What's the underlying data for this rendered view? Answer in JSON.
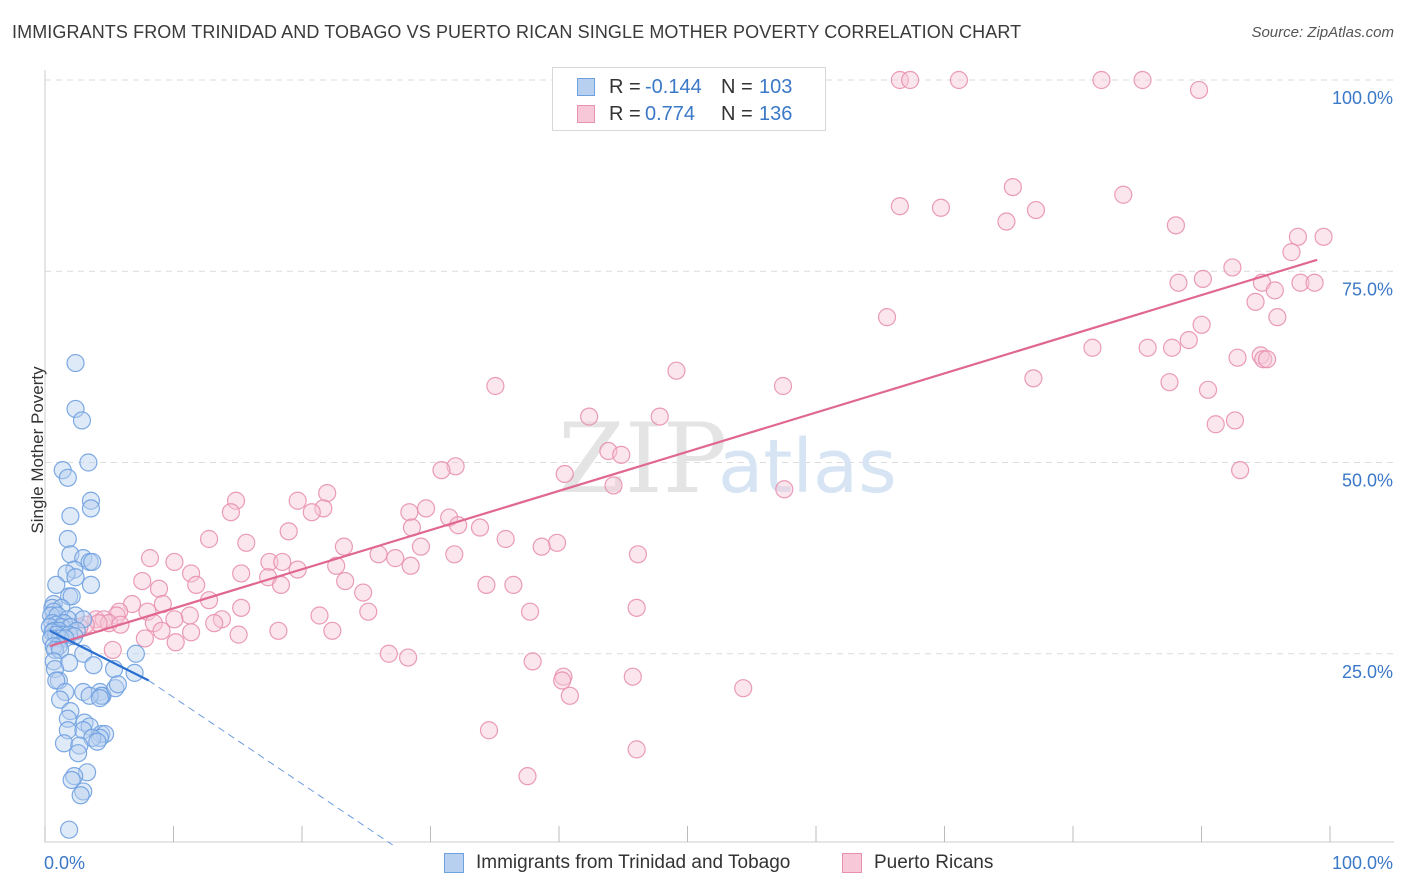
{
  "title": "IMMIGRANTS FROM TRINIDAD AND TOBAGO VS PUERTO RICAN SINGLE MOTHER POVERTY CORRELATION CHART",
  "source": "Source: ZipAtlas.com",
  "watermark": {
    "zip": "ZIP",
    "atlas": "atlas"
  },
  "colors": {
    "blue": "#6fa0e0",
    "blue_fill": "#b8d0f0",
    "blue_line": "#2a6fd0",
    "pink": "#e890b0",
    "pink_fill": "#f6c8d8",
    "pink_line": "#e06890",
    "accent_text": "#3b78c8",
    "grid": "#dcdcdc"
  },
  "legend_top": {
    "rows": [
      {
        "r_label": "R =",
        "r_value": "-0.144",
        "n_label": "N =",
        "n_value": "103",
        "series": "blue"
      },
      {
        "r_label": "R =",
        "r_value": "0.774",
        "n_label": "N =",
        "n_value": "136",
        "series": "pink"
      }
    ]
  },
  "legend_bottom": [
    {
      "label": "Immigrants from Trinidad and Tobago",
      "series": "blue"
    },
    {
      "label": "Puerto Ricans",
      "series": "pink"
    }
  ],
  "chart_data": {
    "type": "scatter",
    "title": "IMMIGRANTS FROM TRINIDAD AND TOBAGO VS PUERTO RICAN SINGLE MOTHER POVERTY CORRELATION CHART",
    "xlabel": "",
    "ylabel": "Single Mother Poverty",
    "xlim": [
      0,
      100
    ],
    "ylim": [
      0,
      103
    ],
    "x_tick_labels": {
      "0": "0.0%",
      "100": "100.0%"
    },
    "y_tick_labels": [
      {
        "value": 25,
        "label": "25.0%"
      },
      {
        "value": 50,
        "label": "50.0%"
      },
      {
        "value": 75,
        "label": "75.0%"
      },
      {
        "value": 100,
        "label": "100.0%"
      }
    ],
    "grid": true,
    "series": [
      {
        "name": "Immigrants from Trinidad and Tobago",
        "color": "blue",
        "trend": {
          "x0": 0.3,
          "y0": 28.0,
          "x1": 8.0,
          "y1": 21.5,
          "dash_to_x": 27.0,
          "dash_to_y": 0.0
        },
        "points": [
          [
            2.3,
            63
          ],
          [
            2.3,
            57
          ],
          [
            2.8,
            55.5
          ],
          [
            3.3,
            50
          ],
          [
            1.3,
            49
          ],
          [
            1.7,
            48
          ],
          [
            3.5,
            45
          ],
          [
            3.5,
            44
          ],
          [
            1.9,
            43
          ],
          [
            1.7,
            40
          ],
          [
            1.9,
            38
          ],
          [
            2.9,
            37.5
          ],
          [
            3.4,
            37
          ],
          [
            3.6,
            37
          ],
          [
            2.2,
            36
          ],
          [
            1.6,
            35.5
          ],
          [
            2.3,
            35
          ],
          [
            0.8,
            34
          ],
          [
            3.5,
            34
          ],
          [
            1.8,
            32.5
          ],
          [
            2.0,
            32.5
          ],
          [
            0.6,
            31.5
          ],
          [
            0.5,
            31
          ],
          [
            1.2,
            31
          ],
          [
            0.6,
            30.5
          ],
          [
            2.3,
            30
          ],
          [
            0.4,
            30
          ],
          [
            0.9,
            30
          ],
          [
            2.9,
            29.5
          ],
          [
            1.7,
            29.5
          ],
          [
            0.5,
            29
          ],
          [
            1.4,
            29
          ],
          [
            0.8,
            28.8
          ],
          [
            1.2,
            28.5
          ],
          [
            0.3,
            28.5
          ],
          [
            1.9,
            28.5
          ],
          [
            0.6,
            28
          ],
          [
            1.0,
            28
          ],
          [
            2.4,
            28
          ],
          [
            0.5,
            27.8
          ],
          [
            1.3,
            27.5
          ],
          [
            1.8,
            27.5
          ],
          [
            0.8,
            27.5
          ],
          [
            2.2,
            27.3
          ],
          [
            1.1,
            27
          ],
          [
            0.4,
            27
          ],
          [
            1.5,
            27
          ],
          [
            1.0,
            26
          ],
          [
            0.6,
            26
          ],
          [
            0.7,
            25.5
          ],
          [
            1.1,
            25.5
          ],
          [
            2.9,
            25
          ],
          [
            7.0,
            25
          ],
          [
            0.6,
            24
          ],
          [
            1.8,
            23.8
          ],
          [
            3.7,
            23.5
          ],
          [
            5.3,
            23
          ],
          [
            0.7,
            23
          ],
          [
            6.9,
            22.5
          ],
          [
            1.0,
            21.5
          ],
          [
            0.8,
            21.5
          ],
          [
            1.5,
            20
          ],
          [
            2.9,
            20
          ],
          [
            4.2,
            20
          ],
          [
            4.4,
            19.5
          ],
          [
            4.3,
            19.5
          ],
          [
            5.4,
            20.5
          ],
          [
            3.4,
            19.5
          ],
          [
            4.2,
            19.2
          ],
          [
            5.6,
            21
          ],
          [
            1.1,
            19
          ],
          [
            1.9,
            17.5
          ],
          [
            1.7,
            16.5
          ],
          [
            3.0,
            16
          ],
          [
            3.4,
            15.5
          ],
          [
            2.9,
            15
          ],
          [
            1.7,
            15
          ],
          [
            4.3,
            14.5
          ],
          [
            4.6,
            14.5
          ],
          [
            4.2,
            14
          ],
          [
            3.6,
            14
          ],
          [
            4.0,
            13.5
          ],
          [
            1.4,
            13.3
          ],
          [
            2.6,
            13
          ],
          [
            2.5,
            12
          ],
          [
            3.2,
            9.5
          ],
          [
            2.2,
            9
          ],
          [
            2.0,
            8.5
          ],
          [
            2.9,
            7
          ],
          [
            2.7,
            6.5
          ],
          [
            1.8,
            2
          ]
        ]
      },
      {
        "name": "Puerto Ricans",
        "color": "pink",
        "trend": {
          "x0": 0.3,
          "y0": 26.0,
          "x1": 99.0,
          "y1": 76.5
        },
        "points": [
          [
            66.5,
            100
          ],
          [
            67.3,
            100
          ],
          [
            71.1,
            100
          ],
          [
            82.2,
            100
          ],
          [
            85.4,
            100
          ],
          [
            89.8,
            98.7
          ],
          [
            75.3,
            86
          ],
          [
            83.9,
            85
          ],
          [
            66.5,
            83.5
          ],
          [
            69.7,
            83.3
          ],
          [
            74.8,
            81.5
          ],
          [
            77.1,
            83
          ],
          [
            88.0,
            81
          ],
          [
            97.5,
            79.5
          ],
          [
            99.5,
            79.5
          ],
          [
            97.0,
            77.5
          ],
          [
            92.4,
            75.5
          ],
          [
            88.2,
            73.5
          ],
          [
            90.1,
            74
          ],
          [
            94.7,
            73.5
          ],
          [
            97.7,
            73.5
          ],
          [
            98.8,
            73.5
          ],
          [
            95.7,
            72.5
          ],
          [
            94.2,
            71
          ],
          [
            95.9,
            69
          ],
          [
            65.5,
            69
          ],
          [
            90.0,
            68
          ],
          [
            89.0,
            66
          ],
          [
            85.8,
            65
          ],
          [
            81.5,
            65
          ],
          [
            87.7,
            65
          ],
          [
            92.8,
            63.7
          ],
          [
            94.6,
            64
          ],
          [
            94.8,
            63.5
          ],
          [
            95.1,
            63.5
          ],
          [
            49.1,
            62
          ],
          [
            76.9,
            61
          ],
          [
            87.5,
            60.5
          ],
          [
            57.4,
            60
          ],
          [
            35.0,
            60
          ],
          [
            90.5,
            59.5
          ],
          [
            42.3,
            56
          ],
          [
            47.8,
            56
          ],
          [
            92.6,
            55.5
          ],
          [
            91.1,
            55
          ],
          [
            43.8,
            51.5
          ],
          [
            44.8,
            51
          ],
          [
            31.9,
            49.5
          ],
          [
            30.8,
            49
          ],
          [
            93.0,
            49
          ],
          [
            40.4,
            48.5
          ],
          [
            44.2,
            47
          ],
          [
            57.5,
            46.5
          ],
          [
            21.9,
            46
          ],
          [
            14.8,
            45
          ],
          [
            19.6,
            45
          ],
          [
            21.6,
            44
          ],
          [
            29.6,
            44
          ],
          [
            28.3,
            43.5
          ],
          [
            35.8,
            40
          ],
          [
            20.7,
            43.5
          ],
          [
            14.4,
            43.5
          ],
          [
            31.4,
            42.8
          ],
          [
            33.8,
            41.5
          ],
          [
            32.1,
            41.8
          ],
          [
            28.5,
            41.5
          ],
          [
            18.9,
            41
          ],
          [
            12.7,
            40
          ],
          [
            15.6,
            39.5
          ],
          [
            23.2,
            39
          ],
          [
            39.8,
            39.5
          ],
          [
            29.2,
            39
          ],
          [
            38.6,
            39
          ],
          [
            25.9,
            38
          ],
          [
            31.8,
            38
          ],
          [
            27.2,
            37.5
          ],
          [
            17.4,
            37
          ],
          [
            28.4,
            36.5
          ],
          [
            46.1,
            38
          ],
          [
            8.1,
            37.5
          ],
          [
            18.4,
            37
          ],
          [
            22.6,
            36.5
          ],
          [
            10.0,
            37
          ],
          [
            19.6,
            36
          ],
          [
            11.3,
            35.5
          ],
          [
            15.2,
            35.5
          ],
          [
            17.3,
            35
          ],
          [
            23.3,
            34.5
          ],
          [
            34.3,
            34
          ],
          [
            36.4,
            34
          ],
          [
            7.5,
            34.5
          ],
          [
            11.7,
            34
          ],
          [
            18.3,
            34
          ],
          [
            8.8,
            33.5
          ],
          [
            24.7,
            33
          ],
          [
            12.7,
            32
          ],
          [
            6.7,
            31.5
          ],
          [
            9.1,
            31.5
          ],
          [
            15.2,
            31
          ],
          [
            46.0,
            31
          ],
          [
            5.7,
            30.5
          ],
          [
            25.1,
            30.5
          ],
          [
            37.7,
            30.5
          ],
          [
            5.5,
            30
          ],
          [
            11.2,
            30
          ],
          [
            7.9,
            30.5
          ],
          [
            21.3,
            30
          ],
          [
            10.0,
            29.5
          ],
          [
            3.9,
            29.5
          ],
          [
            4.5,
            29.5
          ],
          [
            4.9,
            29
          ],
          [
            13.7,
            29.5
          ],
          [
            4.1,
            29
          ],
          [
            8.4,
            29
          ],
          [
            13.1,
            29
          ],
          [
            5.8,
            28.8
          ],
          [
            3.1,
            28.8
          ],
          [
            2.6,
            28.5
          ],
          [
            9.0,
            28
          ],
          [
            11.3,
            27.8
          ],
          [
            22.3,
            28
          ],
          [
            18.1,
            28
          ],
          [
            7.7,
            27
          ],
          [
            15.0,
            27.5
          ],
          [
            10.1,
            26.5
          ],
          [
            5.2,
            25.5
          ],
          [
            26.7,
            25
          ],
          [
            28.2,
            24.5
          ],
          [
            37.9,
            24
          ],
          [
            40.3,
            22
          ],
          [
            45.7,
            22
          ],
          [
            54.3,
            20.5
          ],
          [
            40.2,
            21.5
          ],
          [
            40.8,
            19.5
          ],
          [
            34.5,
            15
          ],
          [
            46.0,
            12.5
          ],
          [
            37.5,
            9
          ]
        ]
      }
    ]
  }
}
